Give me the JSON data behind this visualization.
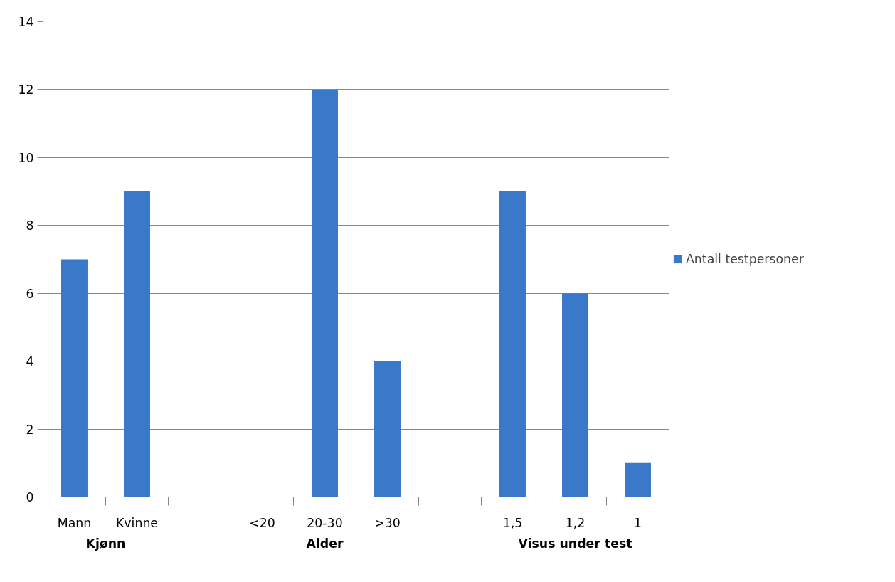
{
  "chart_data": {
    "type": "bar",
    "categories": [
      "Mann",
      "Kvinne",
      null,
      "<20",
      "20-30",
      ">30",
      null,
      "1,5",
      "1,2",
      "1"
    ],
    "series": [
      {
        "name": "Antall testpersoner",
        "color": "#3a78c9",
        "values": [
          7,
          9,
          null,
          0,
          12,
          4,
          null,
          9,
          6,
          1
        ]
      }
    ],
    "annotations": [
      "Kjønn",
      "Alder",
      "Visus under test"
    ],
    "ylim": [
      0,
      14
    ],
    "yticks": [
      0,
      2,
      4,
      6,
      8,
      10,
      12,
      14
    ],
    "grid": "y",
    "legend": "right"
  }
}
